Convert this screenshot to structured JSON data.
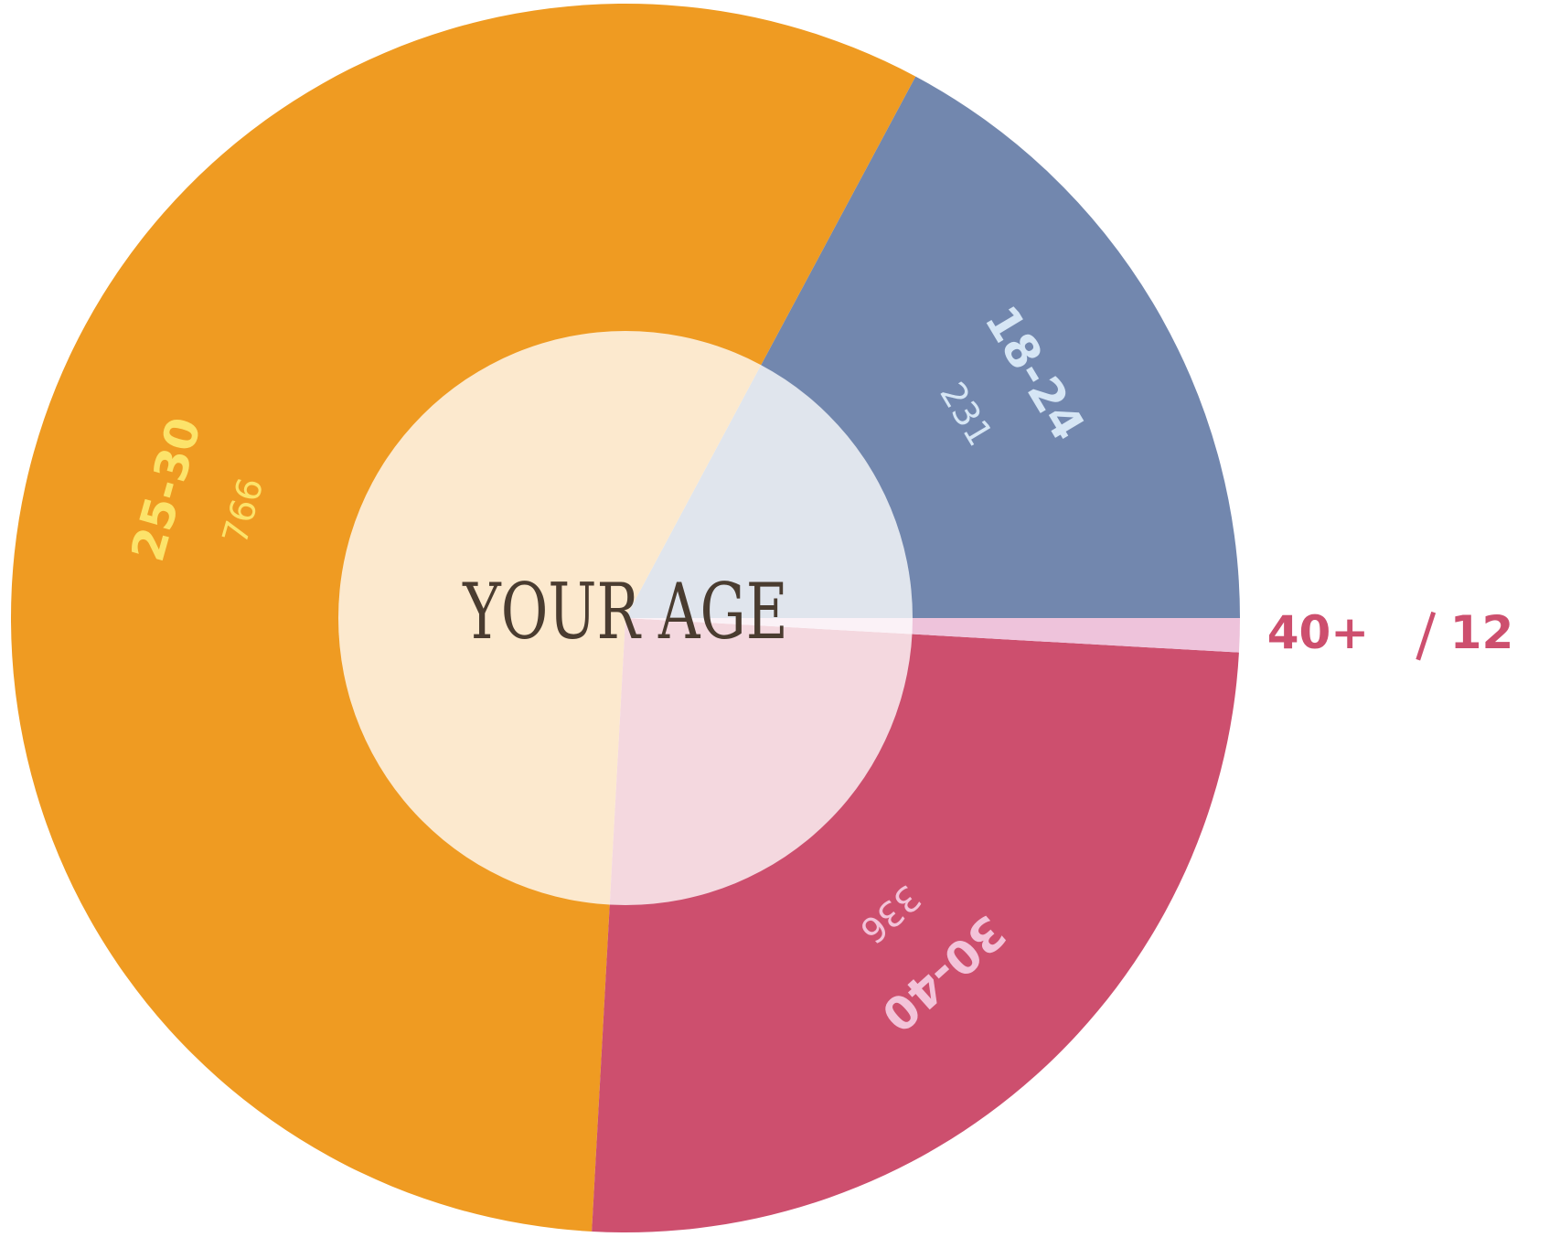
{
  "chart_data": {
    "type": "donut",
    "title": "YOUR AGE",
    "categories": [
      "18-24",
      "25-30",
      "30-40",
      "40+"
    ],
    "values": [
      231,
      766,
      336,
      12
    ],
    "colors": [
      "#7287ae",
      "#ef9b22",
      "#cd4f6e",
      "#eec3db"
    ],
    "label_colors": [
      "#d6e6f5",
      "#fce36a",
      "#f3c3d9",
      "#cd4f6e"
    ]
  }
}
